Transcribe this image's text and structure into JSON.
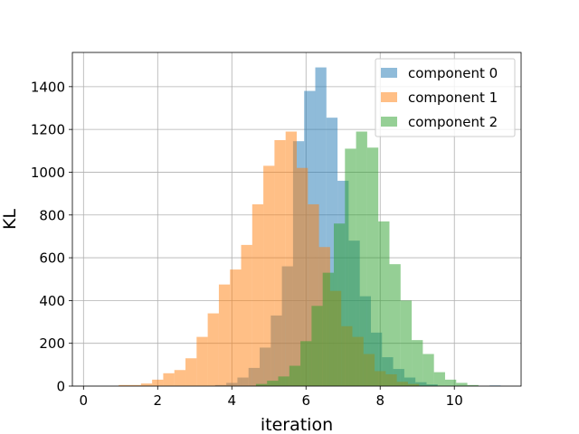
{
  "chart_data": {
    "type": "bar",
    "title": "",
    "xlabel": "iteration",
    "ylabel": "KL",
    "xlim": [
      -0.3,
      11.8
    ],
    "ylim": [
      0,
      1560
    ],
    "x_ticks": [
      0,
      2,
      4,
      6,
      8,
      10
    ],
    "y_ticks": [
      0,
      200,
      400,
      600,
      800,
      1000,
      1200,
      1400
    ],
    "grid": true,
    "legend_position": "top-right",
    "bar_opacity": 0.5,
    "series": [
      {
        "name": "component 0",
        "color": "#1f77b4",
        "bins": [
          [
            3.55,
            3.85,
            5
          ],
          [
            3.85,
            4.15,
            15
          ],
          [
            4.15,
            4.45,
            40
          ],
          [
            4.45,
            4.75,
            85
          ],
          [
            4.75,
            5.05,
            180
          ],
          [
            5.05,
            5.35,
            330
          ],
          [
            5.35,
            5.65,
            560
          ],
          [
            5.65,
            5.95,
            1145
          ],
          [
            5.95,
            6.25,
            1380
          ],
          [
            6.25,
            6.55,
            1490
          ],
          [
            6.55,
            6.85,
            1255
          ],
          [
            6.85,
            7.15,
            960
          ],
          [
            7.15,
            7.45,
            680
          ],
          [
            7.45,
            7.75,
            420
          ],
          [
            7.75,
            8.05,
            250
          ],
          [
            8.05,
            8.35,
            135
          ],
          [
            8.35,
            8.65,
            80
          ],
          [
            8.65,
            8.95,
            40
          ],
          [
            8.95,
            9.25,
            18
          ],
          [
            9.25,
            9.55,
            8
          ],
          [
            10.95,
            11.25,
            3
          ]
        ]
      },
      {
        "name": "component 1",
        "color": "#ff7f0e",
        "bins": [
          [
            0.95,
            1.25,
            5
          ],
          [
            1.25,
            1.55,
            5
          ],
          [
            1.55,
            1.85,
            12
          ],
          [
            1.85,
            2.15,
            30
          ],
          [
            2.15,
            2.45,
            60
          ],
          [
            2.45,
            2.75,
            75
          ],
          [
            2.75,
            3.05,
            130
          ],
          [
            3.05,
            3.35,
            230
          ],
          [
            3.35,
            3.65,
            340
          ],
          [
            3.65,
            3.95,
            475
          ],
          [
            3.95,
            4.25,
            545
          ],
          [
            4.25,
            4.55,
            660
          ],
          [
            4.55,
            4.85,
            850
          ],
          [
            4.85,
            5.15,
            1030
          ],
          [
            5.15,
            5.45,
            1150
          ],
          [
            5.45,
            5.75,
            1190
          ],
          [
            5.75,
            6.05,
            1020
          ],
          [
            6.05,
            6.35,
            850
          ],
          [
            6.35,
            6.65,
            650
          ],
          [
            6.65,
            6.95,
            445
          ],
          [
            6.95,
            7.25,
            280
          ],
          [
            7.25,
            7.55,
            230
          ],
          [
            7.55,
            7.85,
            150
          ],
          [
            7.85,
            8.15,
            70
          ],
          [
            8.15,
            8.45,
            55
          ],
          [
            8.45,
            8.75,
            20
          ],
          [
            8.75,
            9.05,
            10
          ]
        ]
      },
      {
        "name": "component 2",
        "color": "#2ca02c",
        "bins": [
          [
            4.65,
            4.95,
            10
          ],
          [
            4.95,
            5.25,
            25
          ],
          [
            5.25,
            5.55,
            45
          ],
          [
            5.55,
            5.85,
            95
          ],
          [
            5.85,
            6.15,
            210
          ],
          [
            6.15,
            6.45,
            375
          ],
          [
            6.45,
            6.75,
            530
          ],
          [
            6.75,
            7.05,
            760
          ],
          [
            7.05,
            7.35,
            1110
          ],
          [
            7.35,
            7.65,
            1190
          ],
          [
            7.65,
            7.95,
            1115
          ],
          [
            7.95,
            8.25,
            770
          ],
          [
            8.25,
            8.55,
            570
          ],
          [
            8.55,
            8.85,
            400
          ],
          [
            8.85,
            9.15,
            215
          ],
          [
            9.15,
            9.45,
            150
          ],
          [
            9.45,
            9.75,
            65
          ],
          [
            9.75,
            10.05,
            30
          ],
          [
            10.05,
            10.35,
            15
          ],
          [
            10.35,
            10.65,
            5
          ]
        ]
      }
    ]
  }
}
